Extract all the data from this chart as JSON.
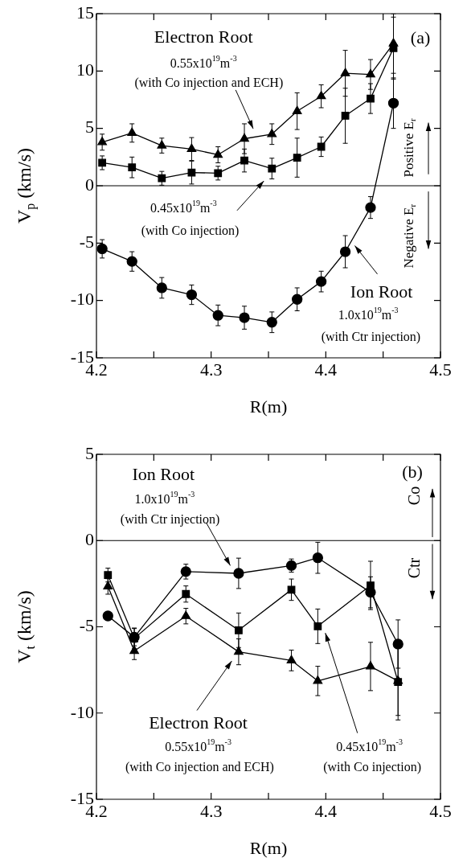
{
  "chart_data": [
    {
      "type": "line",
      "xlabel": "R(m)",
      "ylabel": "V$_{p}$ (km/s)",
      "xlim": [
        4.2,
        4.5
      ],
      "xticks": [
        4.2,
        {
          "value": 4.25,
          "label": null
        },
        4.3,
        {
          "value": 4.35,
          "label": null
        },
        4.4,
        {
          "value": 4.45,
          "label": null
        },
        4.5
      ],
      "ylim": [
        -15,
        15
      ],
      "yticks": [
        -15,
        -10,
        -5,
        0,
        5,
        10,
        15
      ],
      "ref_lines": [
        {
          "axis": "y",
          "value": 0,
          "color": "#000000"
        }
      ],
      "series": [
        {
          "color": "#000000",
          "marker": "triangle",
          "x": [
            4.205,
            4.231,
            4.257,
            4.283,
            4.306,
            4.329,
            4.353,
            4.375,
            4.396,
            4.417,
            4.439,
            4.459
          ],
          "values": [
            3.8,
            4.6,
            3.5,
            3.2,
            2.7,
            4.1,
            4.5,
            6.5,
            7.8,
            9.8,
            9.7,
            12.4
          ],
          "errors": [
            0.7,
            0.8,
            0.65,
            1.0,
            0.7,
            1.3,
            0.9,
            1.6,
            1.0,
            2.0,
            1.3,
            2.6
          ]
        },
        {
          "color": "#000000",
          "marker": "square",
          "x": [
            4.205,
            4.231,
            4.257,
            4.283,
            4.306,
            4.329,
            4.353,
            4.375,
            4.396,
            4.417,
            4.439,
            4.459
          ],
          "values": [
            2.0,
            1.6,
            0.65,
            1.15,
            1.1,
            2.2,
            1.5,
            2.45,
            3.4,
            6.1,
            7.6,
            12.0
          ],
          "errors": [
            0.6,
            0.9,
            0.6,
            1.0,
            0.6,
            1.0,
            0.9,
            1.7,
            0.85,
            2.4,
            1.3,
            2.7
          ]
        },
        {
          "color": "#000000",
          "marker": "circle",
          "x": [
            4.205,
            4.231,
            4.257,
            4.283,
            4.306,
            4.329,
            4.353,
            4.375,
            4.396,
            4.417,
            4.439,
            4.459
          ],
          "values": [
            -5.5,
            -6.6,
            -8.9,
            -9.5,
            -11.3,
            -11.5,
            -11.9,
            -9.9,
            -8.35,
            -5.75,
            -1.9,
            7.2
          ],
          "errors": [
            0.8,
            0.85,
            0.9,
            0.85,
            0.9,
            1.0,
            0.9,
            1.0,
            0.9,
            1.4,
            0.95,
            2.2
          ]
        }
      ],
      "annotations": [
        "Electron Root",
        "0.55x10$^{19}$m$^{-3}$",
        "(with Co injection and ECH)",
        "(a)",
        "0.45x10$^{19}$m$^{-3}$",
        "(with Co injection)",
        "Ion Root",
        "1.0x10$^{19}$m$^{-3}$",
        "(with Ctr injection)",
        "Positive E$_{r}$",
        "Negative E$_{r}$"
      ]
    },
    {
      "type": "line",
      "xlabel": "R(m)",
      "ylabel": "V$_{t}$ (km/s)",
      "xlim": [
        4.2,
        4.5
      ],
      "xticks": [
        4.2,
        {
          "value": 4.25,
          "label": null
        },
        4.3,
        {
          "value": 4.35,
          "label": null
        },
        4.4,
        {
          "value": 4.45,
          "label": null
        },
        4.5
      ],
      "ylim": [
        -15,
        5
      ],
      "yticks": [
        -15,
        -10,
        -5,
        0,
        5
      ],
      "ref_lines": [
        {
          "axis": "y",
          "value": 0,
          "color": "#000000"
        }
      ],
      "series": [
        {
          "color": "#000000",
          "marker": "circle",
          "x": [
            4.21,
            4.233,
            4.278,
            4.324,
            4.37,
            4.393,
            4.439,
            4.463
          ],
          "values": [
            -4.37,
            -5.6,
            -1.8,
            -1.9,
            -1.45,
            -1.0,
            -3.0,
            -6.0
          ],
          "errors": [
            null,
            0.5,
            0.43,
            0.88,
            0.38,
            0.9,
            0.9,
            1.4
          ]
        },
        {
          "color": "#000000",
          "marker": "square",
          "x": [
            4.21,
            4.233,
            4.278,
            4.324,
            4.37,
            4.393,
            4.439,
            4.463
          ],
          "values": [
            -2.0,
            -5.67,
            -3.1,
            -5.2,
            -2.85,
            -4.97,
            -2.6,
            -8.2
          ],
          "errors": [
            0.4,
            0.6,
            0.47,
            1.0,
            0.62,
            1.0,
            1.4,
            2.2
          ]
        },
        {
          "color": "#000000",
          "marker": "triangle",
          "x": [
            4.21,
            4.233,
            4.278,
            4.324,
            4.37,
            4.393,
            4.439,
            4.463
          ],
          "values": [
            -2.66,
            -6.4,
            -4.38,
            -6.45,
            -6.95,
            -8.14,
            -7.3,
            -8.14
          ],
          "errors": [
            0.45,
            0.5,
            0.45,
            0.75,
            0.6,
            0.85,
            1.4,
            2.0
          ]
        }
      ],
      "annotations": [
        "Ion Root",
        "1.0x10$^{19}$m$^{-3}$",
        "(with Ctr injection)",
        "(b)",
        "Co",
        "Ctr",
        "Electron Root",
        "0.55x10$^{19}$m$^{-3}$",
        "(with Co injection and ECH)",
        "0.45x10$^{19}$m$^{-3}$",
        "(with Co injection)"
      ]
    }
  ]
}
